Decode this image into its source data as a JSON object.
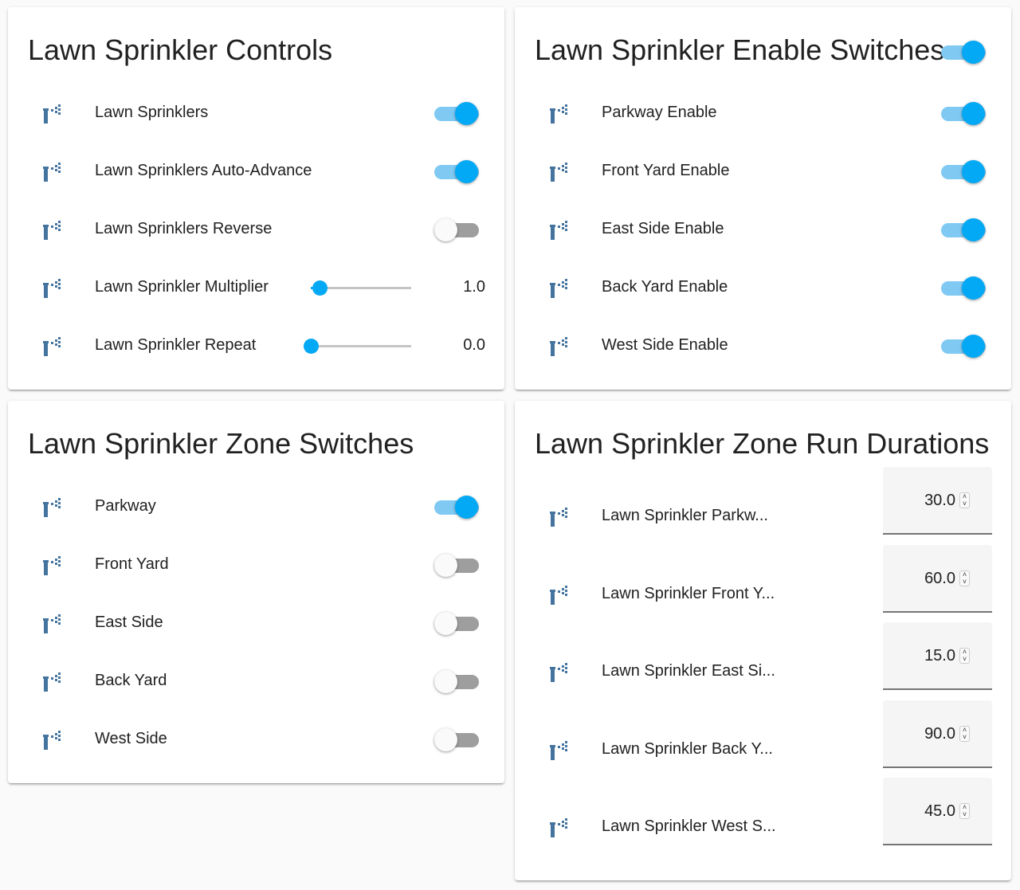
{
  "accent": "#03a9f4",
  "controls": {
    "title": "Lawn Sprinkler Controls",
    "rows": [
      {
        "label": "Lawn Sprinklers",
        "type": "toggle",
        "on": true,
        "icon": "sprinkler-icon"
      },
      {
        "label": "Lawn Sprinklers Auto-Advance",
        "type": "toggle",
        "on": true,
        "icon": "sprinkler-icon"
      },
      {
        "label": "Lawn Sprinklers Reverse",
        "type": "toggle",
        "on": false,
        "icon": "sprinkler-icon"
      },
      {
        "label": "Lawn Sprinkler Multiplier",
        "type": "slider",
        "value": "1.0",
        "icon": "sprinkler-icon"
      },
      {
        "label": "Lawn Sprinkler Repeat",
        "type": "slider",
        "value": "0.0",
        "icon": "sprinkler-icon"
      }
    ]
  },
  "enables": {
    "title": "Lawn Sprinkler Enable Switches",
    "header_toggle_on": true,
    "rows": [
      {
        "label": "Parkway Enable",
        "on": true
      },
      {
        "label": "Front Yard Enable",
        "on": true
      },
      {
        "label": "East Side Enable",
        "on": true
      },
      {
        "label": "Back Yard Enable",
        "on": true
      },
      {
        "label": "West Side Enable",
        "on": true
      }
    ]
  },
  "zones": {
    "title": "Lawn Sprinkler Zone Switches",
    "rows": [
      {
        "label": "Parkway",
        "on": true
      },
      {
        "label": "Front Yard",
        "on": false
      },
      {
        "label": "East Side",
        "on": false
      },
      {
        "label": "Back Yard",
        "on": false
      },
      {
        "label": "West Side",
        "on": false
      }
    ]
  },
  "durations": {
    "title": "Lawn Sprinkler Zone Run Durations",
    "rows": [
      {
        "label": "Lawn Sprinkler Parkw...",
        "value": "30.0"
      },
      {
        "label": "Lawn Sprinkler Front Y...",
        "value": "60.0"
      },
      {
        "label": "Lawn Sprinkler East Si...",
        "value": "15.0"
      },
      {
        "label": "Lawn Sprinkler Back Y...",
        "value": "90.0"
      },
      {
        "label": "Lawn Sprinkler West S...",
        "value": "45.0"
      }
    ]
  }
}
